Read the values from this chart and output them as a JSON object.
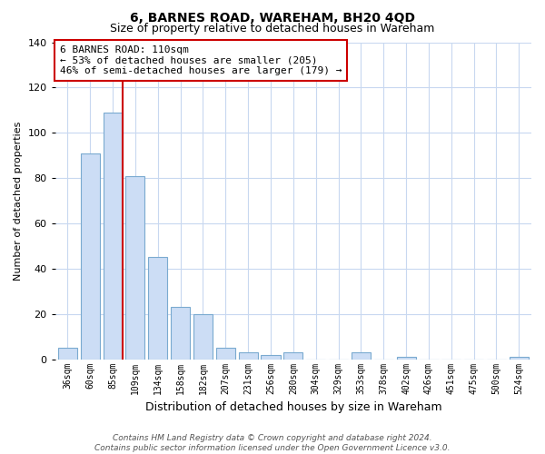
{
  "title": "6, BARNES ROAD, WAREHAM, BH20 4QD",
  "subtitle": "Size of property relative to detached houses in Wareham",
  "xlabel": "Distribution of detached houses by size in Wareham",
  "ylabel": "Number of detached properties",
  "bar_labels": [
    "36sqm",
    "60sqm",
    "85sqm",
    "109sqm",
    "134sqm",
    "158sqm",
    "182sqm",
    "207sqm",
    "231sqm",
    "256sqm",
    "280sqm",
    "304sqm",
    "329sqm",
    "353sqm",
    "378sqm",
    "402sqm",
    "426sqm",
    "451sqm",
    "475sqm",
    "500sqm",
    "524sqm"
  ],
  "bar_values": [
    5,
    91,
    109,
    81,
    45,
    23,
    20,
    5,
    3,
    2,
    3,
    0,
    0,
    3,
    0,
    1,
    0,
    0,
    0,
    0,
    1
  ],
  "bar_color": "#ccddf5",
  "bar_edge_color": "#7aaad0",
  "highlight_bar_index": 2,
  "highlight_line_color": "#cc0000",
  "ylim": [
    0,
    140
  ],
  "yticks": [
    0,
    20,
    40,
    60,
    80,
    100,
    120,
    140
  ],
  "annotation_title": "6 BARNES ROAD: 110sqm",
  "annotation_line1": "← 53% of detached houses are smaller (205)",
  "annotation_line2": "46% of semi-detached houses are larger (179) →",
  "annotation_box_color": "#ffffff",
  "annotation_box_edge_color": "#cc0000",
  "footer_line1": "Contains HM Land Registry data © Crown copyright and database right 2024.",
  "footer_line2": "Contains public sector information licensed under the Open Government Licence v3.0.",
  "background_color": "#ffffff",
  "grid_color": "#c8d8f0",
  "title_fontsize": 10,
  "subtitle_fontsize": 9,
  "ylabel_fontsize": 8,
  "xlabel_fontsize": 9
}
